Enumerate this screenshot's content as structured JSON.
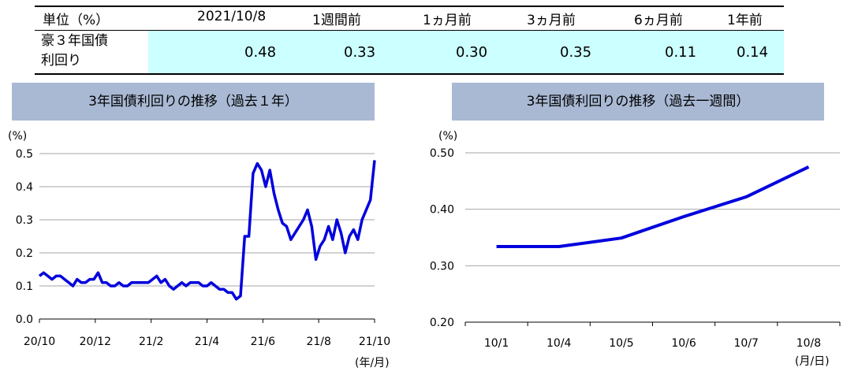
{
  "table": {
    "unit_label": "単位（%）",
    "columns": [
      "2021/10/8",
      "1週間前",
      "1ヵ月前",
      "3ヵ月前",
      "6ヵ月前",
      "1年前"
    ],
    "row_label_line1": "豪３年国債",
    "row_label_line2": "利回り",
    "values": [
      "0.48",
      "0.33",
      "0.30",
      "0.35",
      "0.11",
      "0.14"
    ],
    "highlight_color": "#ccffff"
  },
  "colors": {
    "line": "#0000dd",
    "title_bar": "#a9b9d4",
    "grid": "#a6a6a6"
  },
  "chart_data": [
    {
      "type": "line",
      "title": "3年国債利回りの推移（過去１年）",
      "ylabel": "(%)",
      "xlabel": "(年/月)",
      "ylim": [
        0.0,
        0.5
      ],
      "yticks": [
        "0.0",
        "0.1",
        "0.2",
        "0.3",
        "0.4",
        "0.5"
      ],
      "xtick_labels": [
        "20/10",
        "20/12",
        "21/2",
        "21/4",
        "21/6",
        "21/8",
        "21/10"
      ],
      "grid": true,
      "series": [
        {
          "values": [
            0.13,
            0.14,
            0.13,
            0.12,
            0.13,
            0.13,
            0.12,
            0.11,
            0.1,
            0.12,
            0.11,
            0.11,
            0.12,
            0.12,
            0.14,
            0.11,
            0.11,
            0.1,
            0.1,
            0.11,
            0.1,
            0.1,
            0.11,
            0.11,
            0.11,
            0.11,
            0.11,
            0.12,
            0.13,
            0.11,
            0.12,
            0.1,
            0.09,
            0.1,
            0.11,
            0.1,
            0.11,
            0.11,
            0.11,
            0.1,
            0.1,
            0.11,
            0.1,
            0.09,
            0.09,
            0.08,
            0.08,
            0.06,
            0.07,
            0.25,
            0.25,
            0.44,
            0.47,
            0.45,
            0.4,
            0.45,
            0.38,
            0.33,
            0.29,
            0.28,
            0.24,
            0.26,
            0.28,
            0.3,
            0.33,
            0.28,
            0.18,
            0.22,
            0.24,
            0.28,
            0.24,
            0.3,
            0.26,
            0.2,
            0.25,
            0.27,
            0.24,
            0.3,
            0.33,
            0.36,
            0.48
          ]
        }
      ]
    },
    {
      "type": "line",
      "title": "3年国債利回りの推移（過去一週間）",
      "ylabel": "(%)",
      "xlabel": "(月/日)",
      "ylim": [
        0.2,
        0.5
      ],
      "yticks": [
        "0.20",
        "0.30",
        "0.40",
        "0.50"
      ],
      "categories": [
        "10/1",
        "10/4",
        "10/5",
        "10/6",
        "10/7",
        "10/8"
      ],
      "grid": true,
      "series": [
        {
          "values": [
            0.334,
            0.334,
            0.349,
            0.387,
            0.422,
            0.475
          ]
        }
      ]
    }
  ]
}
